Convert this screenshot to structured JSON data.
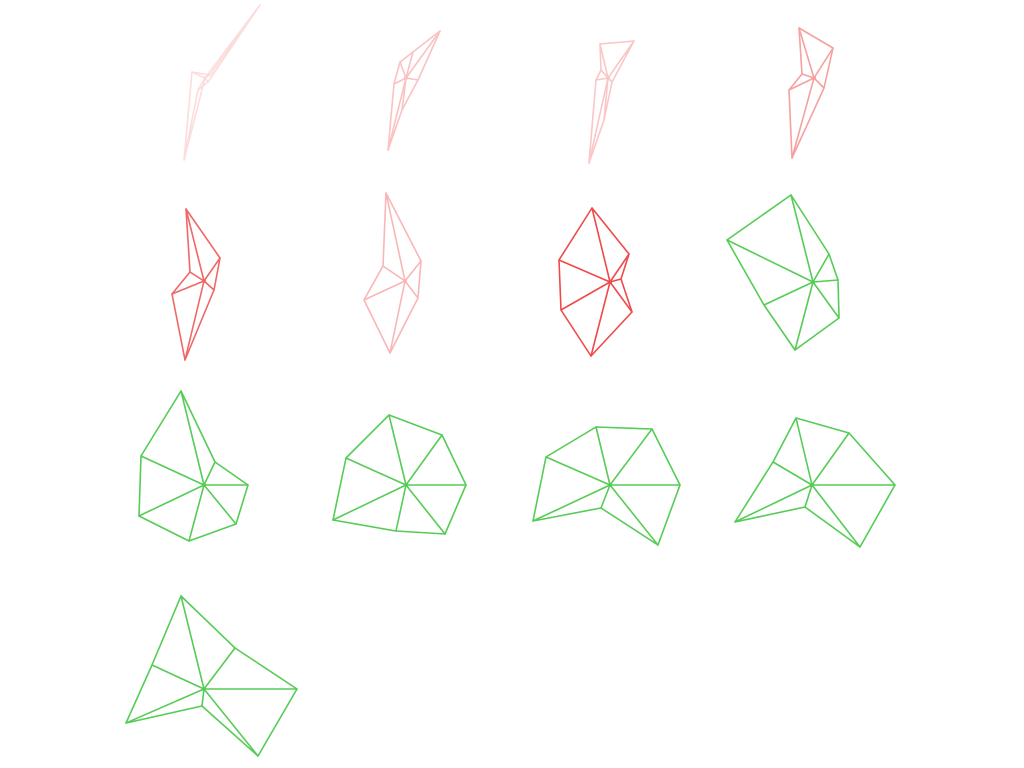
{
  "palette": {
    "red": "#ee4040",
    "green": "#55cc55",
    "background": "#ffffff"
  },
  "shapes": [
    {
      "id": 1,
      "color": "red",
      "intensity": 0.18
    },
    {
      "id": 2,
      "color": "red",
      "intensity": 0.32
    },
    {
      "id": 3,
      "color": "red",
      "intensity": 0.3
    },
    {
      "id": 4,
      "color": "red",
      "intensity": 0.5
    },
    {
      "id": 5,
      "color": "red",
      "intensity": 0.8
    },
    {
      "id": 6,
      "color": "red",
      "intensity": 0.38
    },
    {
      "id": 7,
      "color": "red",
      "intensity": 0.95
    },
    {
      "id": 8,
      "color": "green",
      "intensity": 1.0
    },
    {
      "id": 9,
      "color": "green",
      "intensity": 1.0
    },
    {
      "id": 10,
      "color": "green",
      "intensity": 1.0
    },
    {
      "id": 11,
      "color": "green",
      "intensity": 1.0
    },
    {
      "id": 12,
      "color": "green",
      "intensity": 1.0
    },
    {
      "id": 13,
      "color": "green",
      "intensity": 1.0
    }
  ]
}
